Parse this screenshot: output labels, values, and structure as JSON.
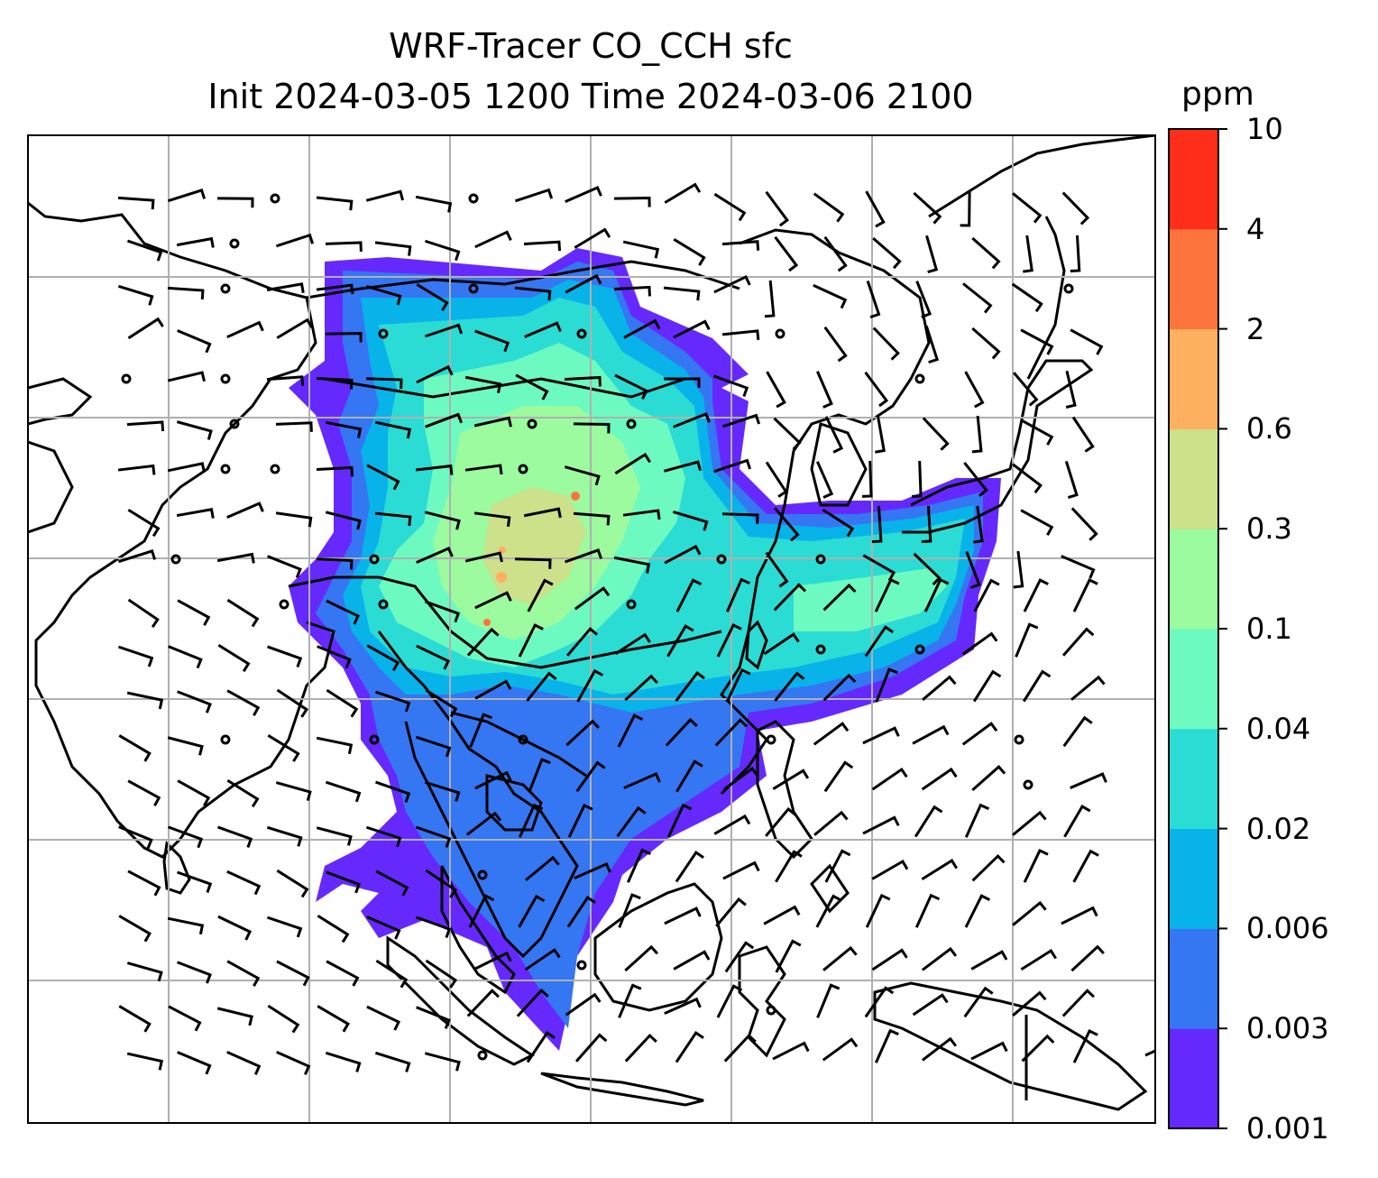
{
  "title": {
    "line1": "WRF-Tracer CO_CCH sfc",
    "line2": "Init 2024-03-05 1200 Time 2024-03-06 2100"
  },
  "colorbar": {
    "unit": "ppm",
    "levels": [
      "0.001",
      "0.003",
      "0.006",
      "0.02",
      "0.04",
      "0.1",
      "0.3",
      "0.6",
      "2",
      "4",
      "10"
    ],
    "colors": [
      "#6629fd",
      "#3576f2",
      "#08b3ea",
      "#2bdcd4",
      "#6dfac0",
      "#9cfa9f",
      "#cde08a",
      "#feb061",
      "#fe743d",
      "#fe2e1a"
    ]
  },
  "map": {
    "background": "#ffffff",
    "coastline_color": "#000000",
    "grid_color": "#b0b0b0",
    "wind_symbols": "barbs"
  }
}
